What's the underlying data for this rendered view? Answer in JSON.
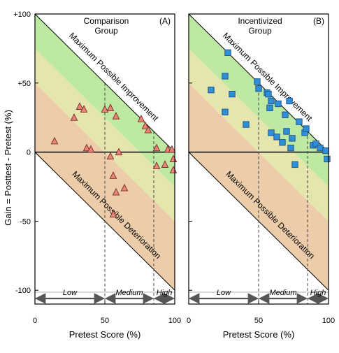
{
  "chart_data": [
    {
      "type": "scatter",
      "panel_title": [
        "Comparison",
        "Group"
      ],
      "panel_tag": "(A)",
      "marker": "triangle",
      "marker_color": "#e8857a",
      "xlim": [
        0,
        100
      ],
      "ylim": [
        -110,
        100
      ],
      "points": [
        {
          "x": 14,
          "y": 8
        },
        {
          "x": 28,
          "y": 25
        },
        {
          "x": 32,
          "y": 33
        },
        {
          "x": 35,
          "y": 31
        },
        {
          "x": 37,
          "y": 3
        },
        {
          "x": 40,
          "y": 2
        },
        {
          "x": 50,
          "y": 31
        },
        {
          "x": 54,
          "y": 32
        },
        {
          "x": 58,
          "y": 26
        },
        {
          "x": 60,
          "y": 0
        },
        {
          "x": 54,
          "y": -3
        },
        {
          "x": 56,
          "y": -17
        },
        {
          "x": 58,
          "y": -29
        },
        {
          "x": 64,
          "y": -26
        },
        {
          "x": 56,
          "y": -45
        },
        {
          "x": 76,
          "y": 24
        },
        {
          "x": 79,
          "y": 19
        },
        {
          "x": 81,
          "y": 16
        },
        {
          "x": 87,
          "y": 3
        },
        {
          "x": 87,
          "y": -10
        },
        {
          "x": 93,
          "y": -9
        },
        {
          "x": 95,
          "y": 2
        },
        {
          "x": 98,
          "y": 2
        },
        {
          "x": 99,
          "y": -5
        },
        {
          "x": 99,
          "y": -13
        }
      ]
    },
    {
      "type": "scatter",
      "panel_title": [
        "Incentivized",
        "Group"
      ],
      "panel_tag": "(B)",
      "marker": "square",
      "marker_color": "#2f8fd8",
      "xlim": [
        0,
        100
      ],
      "ylim": [
        -110,
        100
      ],
      "points": [
        {
          "x": 16,
          "y": 45
        },
        {
          "x": 26,
          "y": 55
        },
        {
          "x": 26,
          "y": 29
        },
        {
          "x": 28,
          "y": 72
        },
        {
          "x": 31,
          "y": 42
        },
        {
          "x": 41,
          "y": 20
        },
        {
          "x": 49,
          "y": 51
        },
        {
          "x": 50,
          "y": 46
        },
        {
          "x": 56,
          "y": 43
        },
        {
          "x": 57,
          "y": 42
        },
        {
          "x": 58,
          "y": 32
        },
        {
          "x": 59,
          "y": 37
        },
        {
          "x": 59,
          "y": 14
        },
        {
          "x": 63,
          "y": 11
        },
        {
          "x": 64,
          "y": 35
        },
        {
          "x": 67,
          "y": 7
        },
        {
          "x": 69,
          "y": 27
        },
        {
          "x": 70,
          "y": 15
        },
        {
          "x": 72,
          "y": 37
        },
        {
          "x": 73,
          "y": 3
        },
        {
          "x": 74,
          "y": 10
        },
        {
          "x": 76,
          "y": -9
        },
        {
          "x": 79,
          "y": 22
        },
        {
          "x": 83,
          "y": 14
        },
        {
          "x": 84,
          "y": 17
        },
        {
          "x": 89,
          "y": 5
        },
        {
          "x": 91,
          "y": 6
        },
        {
          "x": 94,
          "y": 3
        },
        {
          "x": 98,
          "y": 1
        },
        {
          "x": 99,
          "y": -5
        }
      ]
    }
  ],
  "axes": {
    "xlabel": "Pretest Score (%)",
    "ylabel": "Gain = Posttest - Pretest (%)",
    "x_ticks": [
      "0",
      "50",
      "100"
    ],
    "y_ticks": [
      "+100",
      "+50",
      "0",
      "-50",
      "-100"
    ],
    "x_tick_values": [
      0,
      50,
      100
    ],
    "y_tick_values": [
      100,
      50,
      0,
      -50,
      -100
    ]
  },
  "boundaries": {
    "upper_label": "Maximum Possible Improvement",
    "lower_label": "Maximum Possible Deterioration"
  },
  "bands": [
    {
      "label": "Low",
      "from": 0,
      "to": 50
    },
    {
      "label": "Medium",
      "from": 50,
      "to": 85
    },
    {
      "label": "High",
      "from": 85,
      "to": 100
    }
  ],
  "colors": {
    "green_band": "#bde9a3",
    "yellow_band": "#e5e6ad",
    "orange_band": "#edcda9",
    "frame": "#000000",
    "arrow": "#555555"
  }
}
